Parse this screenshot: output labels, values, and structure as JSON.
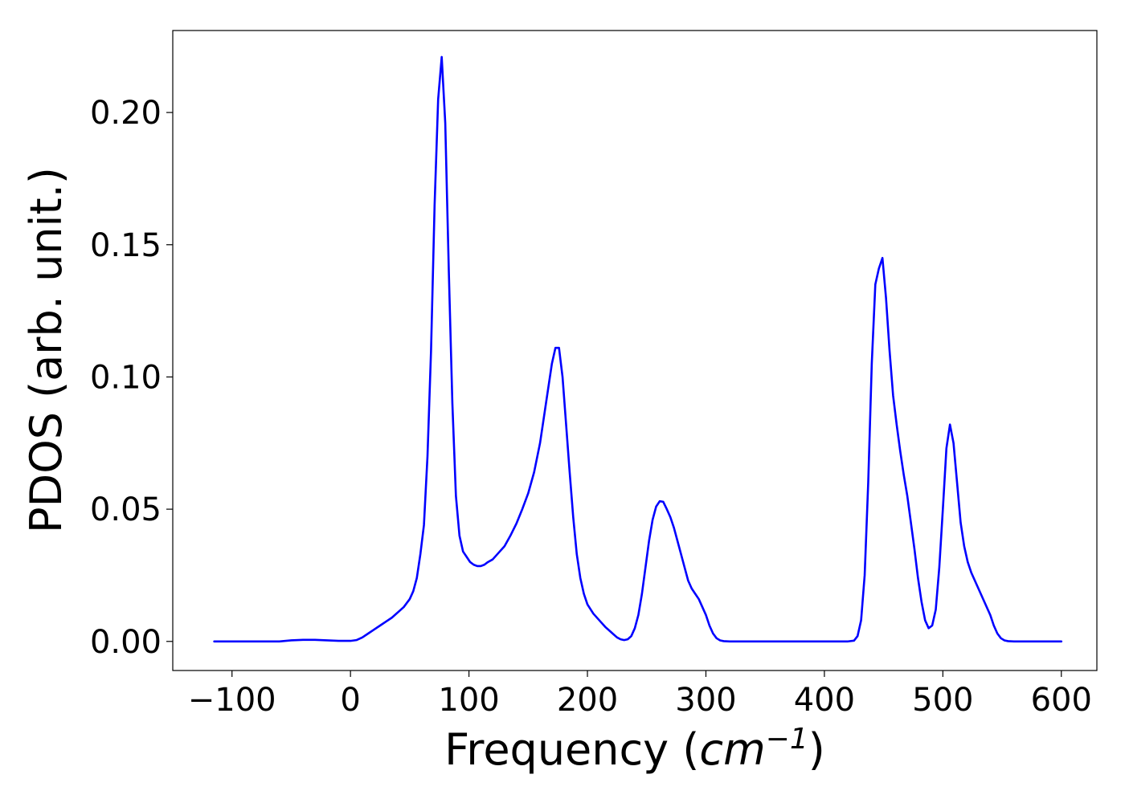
{
  "chart_data": {
    "type": "line",
    "title": "",
    "xlabel": "Frequency",
    "xlabel_open": " (",
    "xlabel_unit": "cm",
    "xlabel_exp": "−1",
    "xlabel_close": ")",
    "ylabel": "PDOS (arb. unit.)",
    "xlim": [
      -150,
      630
    ],
    "ylim": [
      -0.011,
      0.231
    ],
    "x_ticks": [
      -100,
      0,
      100,
      200,
      300,
      400,
      500,
      600
    ],
    "x_tick_labels": [
      "−100",
      "0",
      "100",
      "200",
      "300",
      "400",
      "500",
      "600"
    ],
    "y_ticks": [
      0.0,
      0.05,
      0.1,
      0.15,
      0.2
    ],
    "y_tick_labels": [
      "0.00",
      "0.05",
      "0.10",
      "0.15",
      "0.20"
    ],
    "grid": false,
    "legend": "none",
    "series": [
      {
        "color": "#0000ff",
        "x": [
          -115,
          -60,
          -50,
          -40,
          -30,
          -20,
          -10,
          0,
          5,
          10,
          15,
          20,
          25,
          30,
          35,
          40,
          45,
          50,
          53,
          56,
          59,
          62,
          65,
          68,
          71,
          74,
          77,
          80,
          83,
          86,
          89,
          92,
          95,
          98,
          101,
          104,
          107,
          110,
          113,
          116,
          120,
          125,
          130,
          135,
          140,
          145,
          150,
          155,
          160,
          165,
          170,
          173,
          176,
          179,
          182,
          185,
          188,
          191,
          194,
          197,
          200,
          205,
          210,
          215,
          220,
          225,
          228,
          231,
          234,
          237,
          240,
          243,
          246,
          249,
          252,
          255,
          258,
          261,
          264,
          267,
          270,
          273,
          276,
          279,
          282,
          285,
          288,
          291,
          294,
          297,
          300,
          303,
          306,
          309,
          312,
          315,
          320,
          330,
          360,
          400,
          420,
          425,
          428,
          431,
          434,
          437,
          440,
          443,
          446,
          449,
          452,
          455,
          458,
          461,
          464,
          467,
          470,
          473,
          476,
          479,
          482,
          485,
          488,
          491,
          494,
          497,
          500,
          503,
          506,
          509,
          512,
          515,
          518,
          521,
          524,
          527,
          530,
          535,
          540,
          543,
          546,
          549,
          552,
          555,
          560,
          600
        ],
        "y": [
          0.0,
          0.0,
          0.0004,
          0.0006,
          0.0006,
          0.0004,
          0.0002,
          0.0002,
          0.0005,
          0.0015,
          0.003,
          0.0045,
          0.006,
          0.0075,
          0.009,
          0.011,
          0.013,
          0.016,
          0.019,
          0.024,
          0.033,
          0.044,
          0.07,
          0.11,
          0.165,
          0.205,
          0.221,
          0.196,
          0.14,
          0.09,
          0.055,
          0.04,
          0.034,
          0.032,
          0.03,
          0.029,
          0.0285,
          0.0285,
          0.029,
          0.03,
          0.031,
          0.0335,
          0.036,
          0.04,
          0.0445,
          0.05,
          0.056,
          0.064,
          0.075,
          0.09,
          0.105,
          0.111,
          0.111,
          0.1,
          0.082,
          0.064,
          0.047,
          0.033,
          0.024,
          0.018,
          0.014,
          0.0105,
          0.008,
          0.0055,
          0.0035,
          0.0015,
          0.0008,
          0.0005,
          0.0008,
          0.002,
          0.005,
          0.01,
          0.018,
          0.028,
          0.038,
          0.046,
          0.051,
          0.053,
          0.0528,
          0.05,
          0.047,
          0.043,
          0.038,
          0.033,
          0.028,
          0.023,
          0.02,
          0.018,
          0.016,
          0.013,
          0.01,
          0.006,
          0.003,
          0.0012,
          0.0004,
          0.0001,
          0.0,
          0.0,
          0.0,
          0.0,
          0.0,
          0.0003,
          0.002,
          0.008,
          0.025,
          0.06,
          0.105,
          0.135,
          0.141,
          0.145,
          0.13,
          0.11,
          0.093,
          0.082,
          0.072,
          0.063,
          0.055,
          0.045,
          0.035,
          0.024,
          0.015,
          0.008,
          0.005,
          0.006,
          0.012,
          0.028,
          0.05,
          0.073,
          0.082,
          0.075,
          0.06,
          0.045,
          0.036,
          0.03,
          0.026,
          0.023,
          0.02,
          0.015,
          0.01,
          0.006,
          0.003,
          0.0012,
          0.0004,
          0.0001,
          0.0,
          0.0
        ]
      }
    ]
  }
}
